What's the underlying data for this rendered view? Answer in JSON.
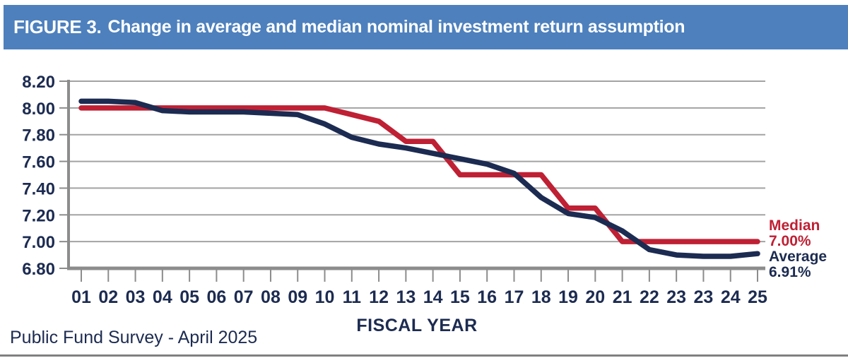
{
  "header": {
    "figure_label": "FIGURE 3.",
    "title": "Change in average and median nominal investment return assumption"
  },
  "footer": {
    "source": "Public Fund Survey - April 2025"
  },
  "colors": {
    "header_bg": "#4d80bd",
    "header_text": "#ffffff",
    "navy": "#1c2b51",
    "red": "#bf2034",
    "grid": "#a3a3a3",
    "axis": "#8c8c8c",
    "rule": "#808080",
    "background": "#ffffff"
  },
  "chart_data": {
    "type": "line",
    "title": "FIGURE 3. Change in average and median nominal investment return assumption",
    "xlabel": "FISCAL YEAR",
    "ylabel": "",
    "ylim": [
      6.8,
      8.2
    ],
    "ytick_step": 0.2,
    "yticks": [
      "8.20",
      "8.00",
      "7.80",
      "7.60",
      "7.40",
      "7.20",
      "7.00",
      "6.80"
    ],
    "grid": "horizontal",
    "legend_position": "right-end-labels",
    "categories": [
      "01",
      "02",
      "03",
      "04",
      "05",
      "06",
      "07",
      "08",
      "09",
      "10",
      "11",
      "12",
      "13",
      "14",
      "15",
      "16",
      "17",
      "18",
      "19",
      "20",
      "21",
      "22",
      "23",
      "23",
      "24",
      "25"
    ],
    "series": [
      {
        "name": "Median",
        "end_value": "7.00%",
        "color": "#bf2034",
        "values": [
          8.0,
          8.0,
          8.0,
          8.0,
          8.0,
          8.0,
          8.0,
          8.0,
          8.0,
          8.0,
          7.95,
          7.9,
          7.75,
          7.75,
          7.5,
          7.5,
          7.5,
          7.5,
          7.25,
          7.25,
          7.0,
          7.0,
          7.0,
          7.0,
          7.0,
          7.0
        ]
      },
      {
        "name": "Average",
        "end_value": "6.91%",
        "color": "#1c2b51",
        "values": [
          8.05,
          8.05,
          8.04,
          7.98,
          7.97,
          7.97,
          7.97,
          7.96,
          7.95,
          7.88,
          7.78,
          7.73,
          7.7,
          7.66,
          7.62,
          7.58,
          7.51,
          7.33,
          7.21,
          7.18,
          7.08,
          6.94,
          6.9,
          6.89,
          6.89,
          6.91
        ]
      }
    ]
  }
}
